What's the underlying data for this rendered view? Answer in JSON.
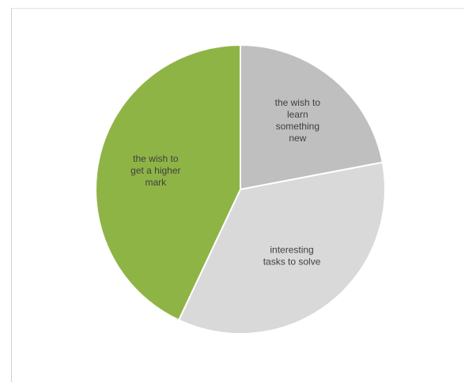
{
  "chart_data": {
    "type": "pie",
    "title": "",
    "slices": [
      {
        "label": [
          "the wish to",
          "learn",
          "something",
          "new"
        ],
        "value": 22,
        "color": "#bfbfbf"
      },
      {
        "label": [
          "interesting",
          "tasks to solve"
        ],
        "value": 35,
        "color": "#d9d9d9"
      },
      {
        "label": [
          "the wish to",
          "get a higher",
          "mark"
        ],
        "value": 43,
        "color": "#8fb446"
      }
    ],
    "start_angle_deg": 0,
    "direction": "clockwise",
    "legend": "none"
  }
}
